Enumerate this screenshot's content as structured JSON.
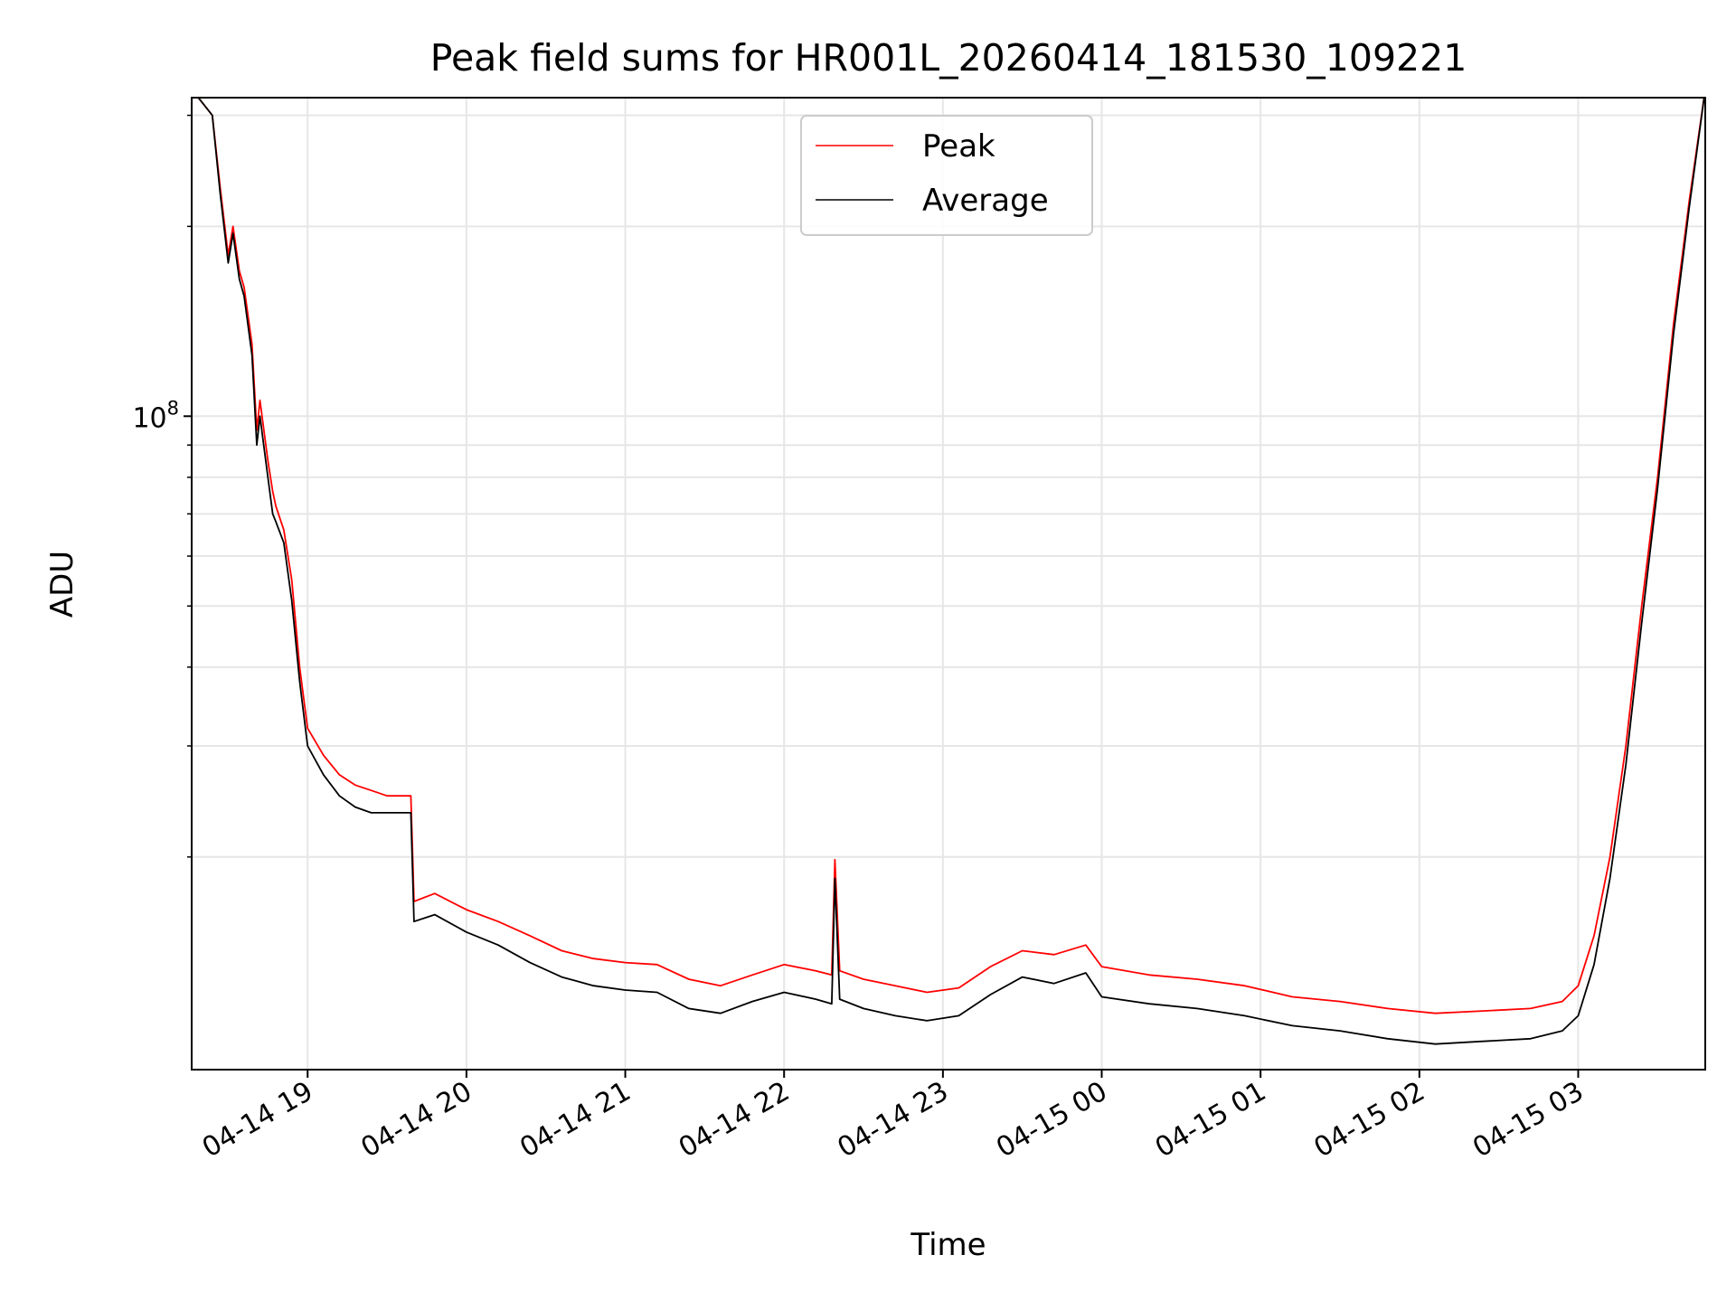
{
  "chart_data": {
    "type": "line",
    "title": "Peak field sums for HR001L_20260414_181530_109221",
    "xlabel": "Time",
    "ylabel": "ADU",
    "yscale": "log",
    "ylim": [
      9200000,
      320000000
    ],
    "xlim_hours": [
      18.27,
      27.8
    ],
    "grid": true,
    "legend_position": "upper center",
    "x_ticks": [
      {
        "hour": 19,
        "label": "04-14 19"
      },
      {
        "hour": 20,
        "label": "04-14 20"
      },
      {
        "hour": 21,
        "label": "04-14 21"
      },
      {
        "hour": 22,
        "label": "04-14 22"
      },
      {
        "hour": 23,
        "label": "04-14 23"
      },
      {
        "hour": 24,
        "label": "04-15 00"
      },
      {
        "hour": 25,
        "label": "04-15 01"
      },
      {
        "hour": 26,
        "label": "04-15 02"
      },
      {
        "hour": 27,
        "label": "04-15 03"
      }
    ],
    "y_major_tick": {
      "value": 100000000,
      "base": "10",
      "exponent": "8"
    },
    "y_minor_ticks": [
      20000000,
      30000000,
      40000000,
      50000000,
      60000000,
      70000000,
      80000000,
      90000000,
      200000000,
      300000000
    ],
    "series": [
      {
        "name": "Peak",
        "color": "#ff0000",
        "points": [
          [
            18.27,
            330000000
          ],
          [
            18.4,
            300000000
          ],
          [
            18.45,
            230000000
          ],
          [
            18.5,
            180000000
          ],
          [
            18.53,
            200000000
          ],
          [
            18.57,
            170000000
          ],
          [
            18.6,
            160000000
          ],
          [
            18.65,
            130000000
          ],
          [
            18.68,
            95000000
          ],
          [
            18.7,
            106000000
          ],
          [
            18.75,
            85000000
          ],
          [
            18.78,
            76000000
          ],
          [
            18.8,
            72000000
          ],
          [
            18.85,
            66000000
          ],
          [
            18.9,
            55000000
          ],
          [
            18.95,
            40000000
          ],
          [
            19.0,
            32000000
          ],
          [
            19.1,
            29000000
          ],
          [
            19.2,
            27000000
          ],
          [
            19.3,
            26000000
          ],
          [
            19.4,
            25500000
          ],
          [
            19.5,
            25000000
          ],
          [
            19.65,
            25000000
          ],
          [
            19.67,
            17000000
          ],
          [
            19.8,
            17500000
          ],
          [
            20.0,
            16500000
          ],
          [
            20.2,
            15800000
          ],
          [
            20.4,
            15000000
          ],
          [
            20.6,
            14200000
          ],
          [
            20.8,
            13800000
          ],
          [
            21.0,
            13600000
          ],
          [
            21.2,
            13500000
          ],
          [
            21.4,
            12800000
          ],
          [
            21.6,
            12500000
          ],
          [
            21.8,
            13000000
          ],
          [
            22.0,
            13500000
          ],
          [
            22.2,
            13200000
          ],
          [
            22.3,
            13000000
          ],
          [
            22.32,
            19800000
          ],
          [
            22.35,
            13200000
          ],
          [
            22.5,
            12800000
          ],
          [
            22.7,
            12500000
          ],
          [
            22.9,
            12200000
          ],
          [
            23.1,
            12400000
          ],
          [
            23.3,
            13400000
          ],
          [
            23.5,
            14200000
          ],
          [
            23.7,
            14000000
          ],
          [
            23.9,
            14500000
          ],
          [
            24.0,
            13400000
          ],
          [
            24.3,
            13000000
          ],
          [
            24.6,
            12800000
          ],
          [
            24.9,
            12500000
          ],
          [
            25.2,
            12000000
          ],
          [
            25.5,
            11800000
          ],
          [
            25.8,
            11500000
          ],
          [
            26.1,
            11300000
          ],
          [
            26.4,
            11400000
          ],
          [
            26.7,
            11500000
          ],
          [
            26.9,
            11800000
          ],
          [
            27.0,
            12500000
          ],
          [
            27.1,
            15000000
          ],
          [
            27.2,
            20000000
          ],
          [
            27.3,
            30000000
          ],
          [
            27.4,
            50000000
          ],
          [
            27.5,
            80000000
          ],
          [
            27.6,
            140000000
          ],
          [
            27.7,
            220000000
          ],
          [
            27.8,
            330000000
          ]
        ]
      },
      {
        "name": "Average",
        "color": "#000000",
        "points": [
          [
            18.27,
            330000000
          ],
          [
            18.4,
            300000000
          ],
          [
            18.45,
            225000000
          ],
          [
            18.5,
            175000000
          ],
          [
            18.53,
            195000000
          ],
          [
            18.57,
            165000000
          ],
          [
            18.6,
            155000000
          ],
          [
            18.65,
            125000000
          ],
          [
            18.68,
            90000000
          ],
          [
            18.7,
            100000000
          ],
          [
            18.75,
            80000000
          ],
          [
            18.78,
            70000000
          ],
          [
            18.8,
            68000000
          ],
          [
            18.85,
            63000000
          ],
          [
            18.9,
            51000000
          ],
          [
            18.95,
            38000000
          ],
          [
            19.0,
            30000000
          ],
          [
            19.1,
            27000000
          ],
          [
            19.2,
            25000000
          ],
          [
            19.3,
            24000000
          ],
          [
            19.4,
            23500000
          ],
          [
            19.5,
            23500000
          ],
          [
            19.65,
            23500000
          ],
          [
            19.67,
            15800000
          ],
          [
            19.8,
            16200000
          ],
          [
            20.0,
            15200000
          ],
          [
            20.2,
            14500000
          ],
          [
            20.4,
            13600000
          ],
          [
            20.6,
            12900000
          ],
          [
            20.8,
            12500000
          ],
          [
            21.0,
            12300000
          ],
          [
            21.2,
            12200000
          ],
          [
            21.4,
            11500000
          ],
          [
            21.6,
            11300000
          ],
          [
            21.8,
            11800000
          ],
          [
            22.0,
            12200000
          ],
          [
            22.2,
            11900000
          ],
          [
            22.3,
            11700000
          ],
          [
            22.32,
            18500000
          ],
          [
            22.35,
            11900000
          ],
          [
            22.5,
            11500000
          ],
          [
            22.7,
            11200000
          ],
          [
            22.9,
            11000000
          ],
          [
            23.1,
            11200000
          ],
          [
            23.3,
            12100000
          ],
          [
            23.5,
            12900000
          ],
          [
            23.7,
            12600000
          ],
          [
            23.9,
            13100000
          ],
          [
            24.0,
            12000000
          ],
          [
            24.3,
            11700000
          ],
          [
            24.6,
            11500000
          ],
          [
            24.9,
            11200000
          ],
          [
            25.2,
            10800000
          ],
          [
            25.5,
            10600000
          ],
          [
            25.8,
            10300000
          ],
          [
            26.1,
            10100000
          ],
          [
            26.4,
            10200000
          ],
          [
            26.7,
            10300000
          ],
          [
            26.9,
            10600000
          ],
          [
            27.0,
            11200000
          ],
          [
            27.1,
            13500000
          ],
          [
            27.2,
            18500000
          ],
          [
            27.3,
            28000000
          ],
          [
            27.4,
            47000000
          ],
          [
            27.5,
            77000000
          ],
          [
            27.6,
            135000000
          ],
          [
            27.7,
            215000000
          ],
          [
            27.8,
            330000000
          ]
        ]
      }
    ]
  }
}
